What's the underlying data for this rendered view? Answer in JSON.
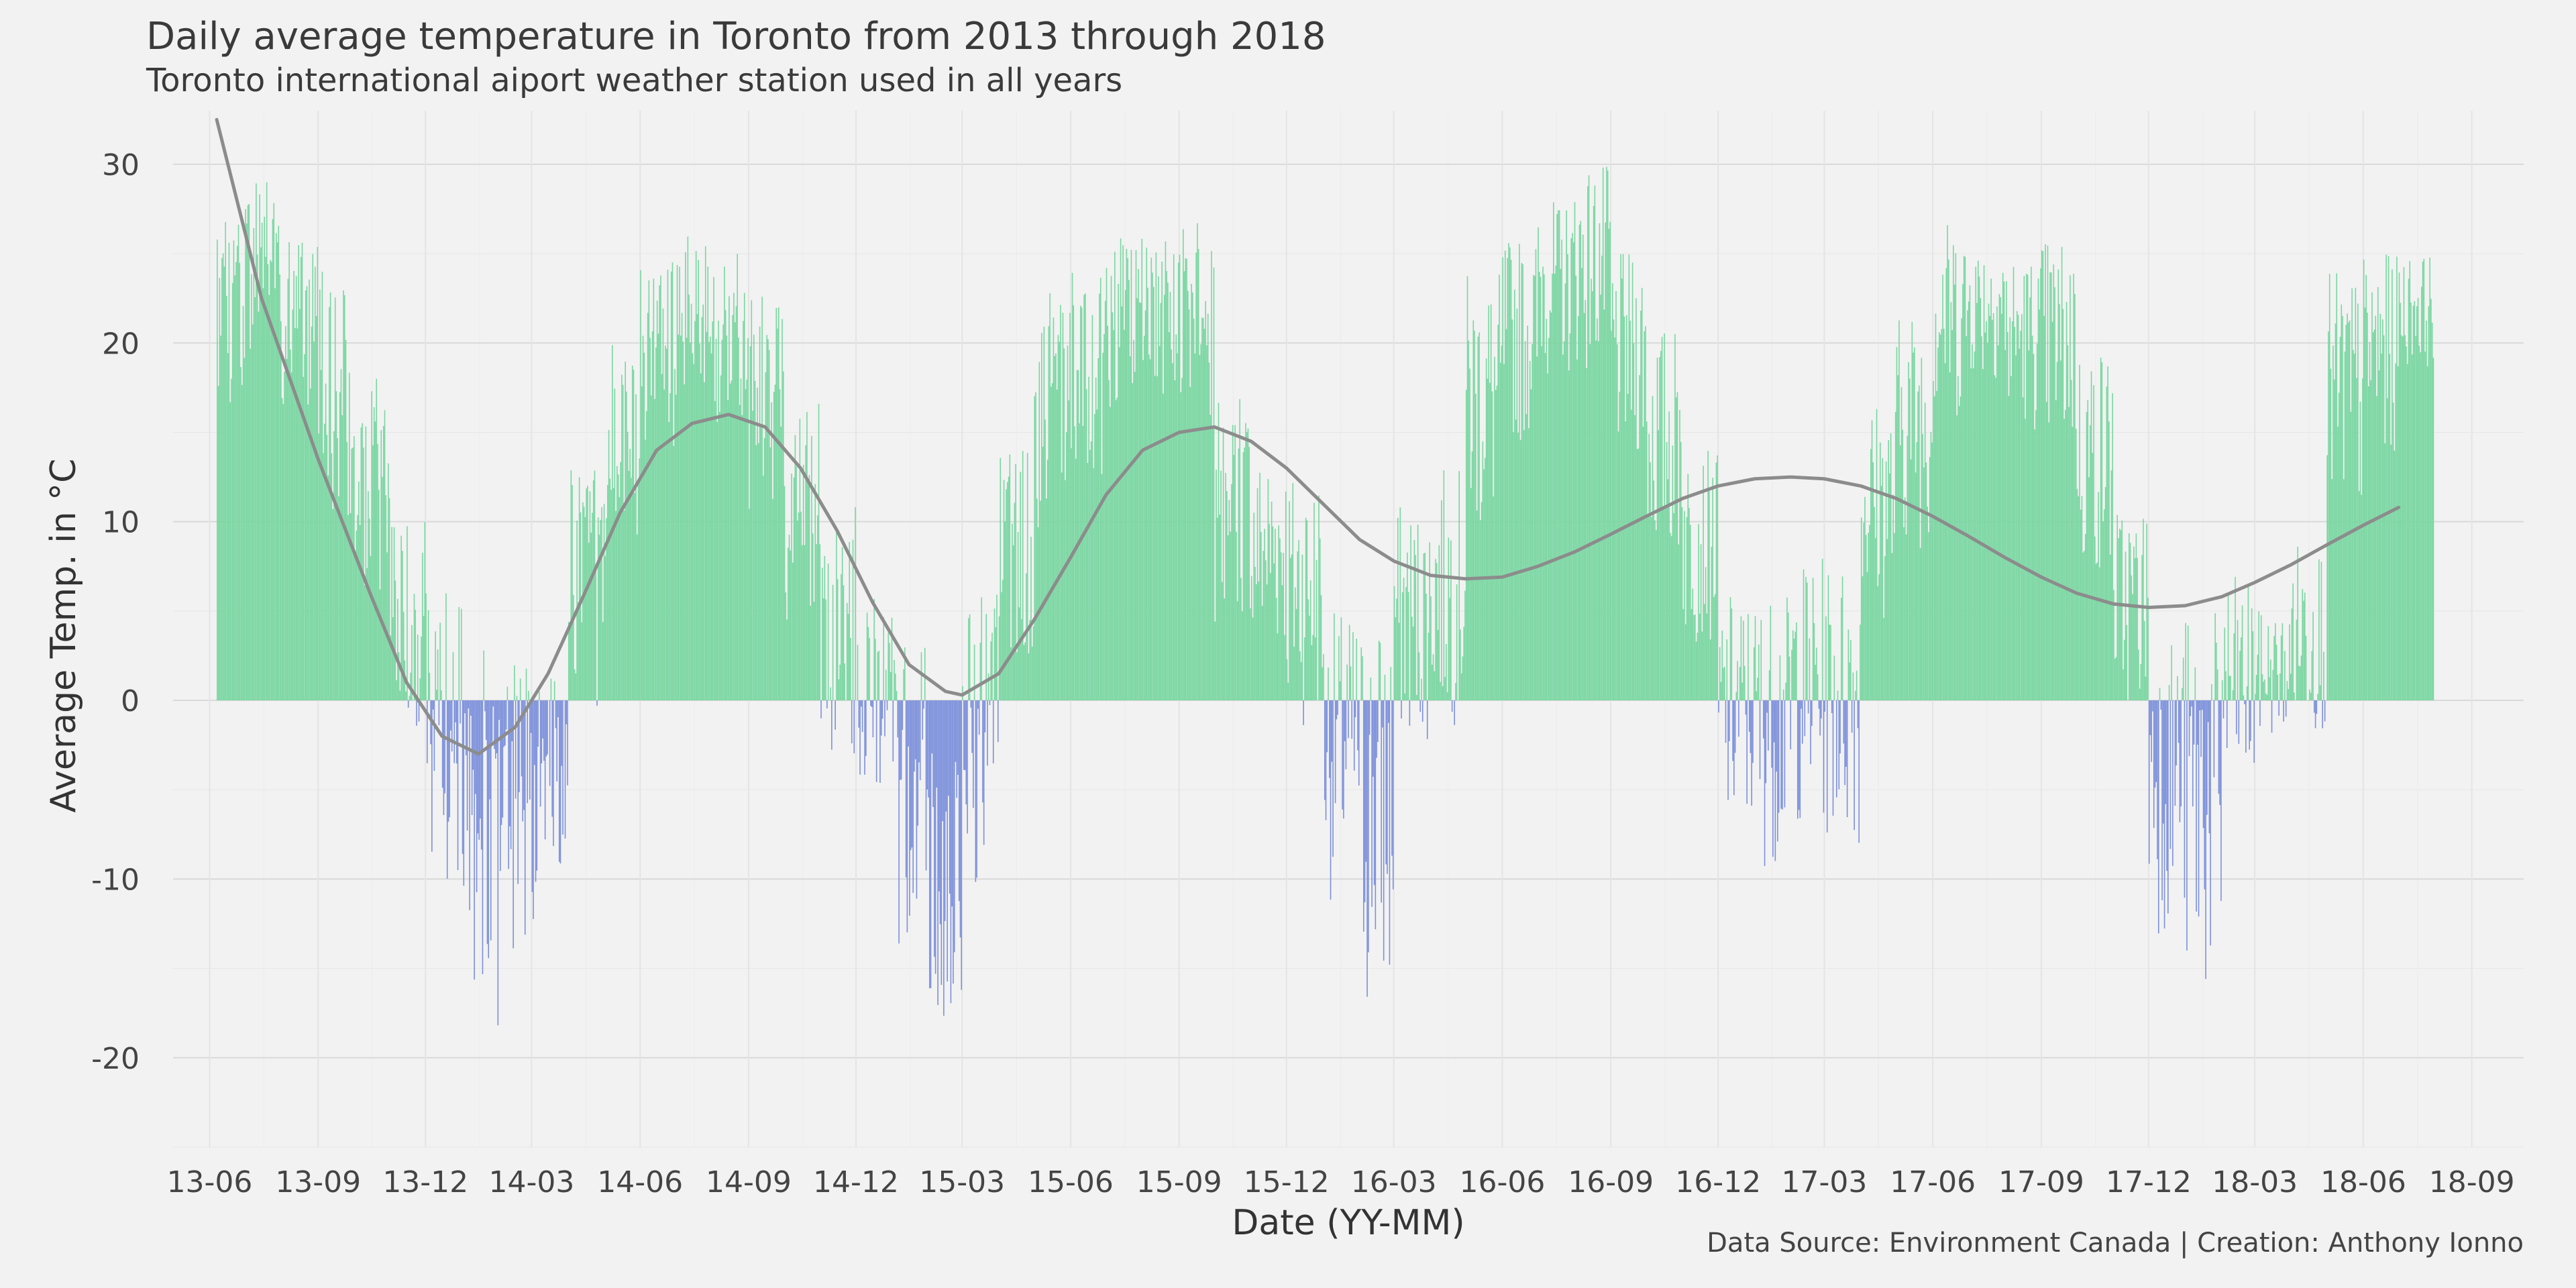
{
  "chart_data": {
    "type": "bar",
    "title": "Daily average temperature in Toronto from 2013 through 2018",
    "subtitle": "Toronto international aiport weather station used in all years",
    "xlabel": "Date (YY-MM)",
    "ylabel": "Average Temp. in °C",
    "caption": "Data Source: Environment Canada | Creation: Anthony Ionno",
    "ylim": [
      -25,
      33
    ],
    "yticks": [
      30,
      20,
      10,
      0,
      -10,
      -20
    ],
    "xticks": [
      "13-06",
      "13-09",
      "13-12",
      "14-03",
      "14-06",
      "14-09",
      "14-12",
      "15-03",
      "15-06",
      "15-09",
      "15-12",
      "16-03",
      "16-06",
      "16-09",
      "16-12",
      "17-03",
      "17-06",
      "17-09",
      "17-12",
      "18-03",
      "18-06",
      "18-09"
    ],
    "x_range": [
      "2013-06-01",
      "2018-09-01"
    ],
    "grid": true,
    "colors": {
      "positive": "#78d6a0",
      "negative": "#7b8fdb",
      "trend": "#8c8c8c",
      "background": "#f2f2f2",
      "gridline": "#d9d9d9"
    },
    "bar_series": {
      "name": "Daily average temperature",
      "date_resolution": "day",
      "monthly_envelope": [
        {
          "month": "2013-06",
          "low": 15,
          "high": 27
        },
        {
          "month": "2013-07",
          "low": 18,
          "high": 29
        },
        {
          "month": "2013-08",
          "low": 15,
          "high": 26
        },
        {
          "month": "2013-09",
          "low": 8,
          "high": 24
        },
        {
          "month": "2013-10",
          "low": 4,
          "high": 18
        },
        {
          "month": "2013-11",
          "low": -4,
          "high": 11
        },
        {
          "month": "2013-12",
          "low": -12,
          "high": 6
        },
        {
          "month": "2014-01",
          "low": -21,
          "high": 3
        },
        {
          "month": "2014-02",
          "low": -17,
          "high": 2
        },
        {
          "month": "2014-03",
          "low": -15,
          "high": 2
        },
        {
          "month": "2014-04",
          "low": -2,
          "high": 13
        },
        {
          "month": "2014-05",
          "low": 6,
          "high": 20
        },
        {
          "month": "2014-06",
          "low": 12,
          "high": 25
        },
        {
          "month": "2014-07",
          "low": 14,
          "high": 26
        },
        {
          "month": "2014-08",
          "low": 14,
          "high": 25
        },
        {
          "month": "2014-09",
          "low": 8,
          "high": 23
        },
        {
          "month": "2014-10",
          "low": 3,
          "high": 17
        },
        {
          "month": "2014-11",
          "low": -5,
          "high": 11
        },
        {
          "month": "2014-12",
          "low": -6,
          "high": 6
        },
        {
          "month": "2015-01",
          "low": -18,
          "high": 3
        },
        {
          "month": "2015-02",
          "low": -22,
          "high": -2
        },
        {
          "month": "2015-03",
          "low": -12,
          "high": 6
        },
        {
          "month": "2015-04",
          "low": 1,
          "high": 14
        },
        {
          "month": "2015-05",
          "low": 8,
          "high": 23
        },
        {
          "month": "2015-06",
          "low": 11,
          "high": 24
        },
        {
          "month": "2015-07",
          "low": 15,
          "high": 26
        },
        {
          "month": "2015-08",
          "low": 15,
          "high": 26
        },
        {
          "month": "2015-09",
          "low": 12,
          "high": 27
        },
        {
          "month": "2015-10",
          "low": 3,
          "high": 17
        },
        {
          "month": "2015-11",
          "low": 1,
          "high": 14
        },
        {
          "month": "2015-12",
          "low": -3,
          "high": 13
        },
        {
          "month": "2016-01",
          "low": -13,
          "high": 5
        },
        {
          "month": "2016-02",
          "low": -21,
          "high": 5
        },
        {
          "month": "2016-03",
          "low": -4,
          "high": 11
        },
        {
          "month": "2016-04",
          "low": -3,
          "high": 13
        },
        {
          "month": "2016-05",
          "low": 7,
          "high": 24
        },
        {
          "month": "2016-06",
          "low": 13,
          "high": 26
        },
        {
          "month": "2016-07",
          "low": 17,
          "high": 28
        },
        {
          "month": "2016-08",
          "low": 17,
          "high": 30
        },
        {
          "month": "2016-09",
          "low": 12,
          "high": 25
        },
        {
          "month": "2016-10",
          "low": 6,
          "high": 21
        },
        {
          "month": "2016-11",
          "low": 2,
          "high": 14
        },
        {
          "month": "2016-12",
          "low": -10,
          "high": 6
        },
        {
          "month": "2017-01",
          "low": -11,
          "high": 6
        },
        {
          "month": "2017-02",
          "low": -9,
          "high": 8
        },
        {
          "month": "2017-03",
          "low": -10,
          "high": 8
        },
        {
          "month": "2017-04",
          "low": 3,
          "high": 17
        },
        {
          "month": "2017-05",
          "low": 7,
          "high": 22
        },
        {
          "month": "2017-06",
          "low": 14,
          "high": 27
        },
        {
          "month": "2017-07",
          "low": 17,
          "high": 26
        },
        {
          "month": "2017-08",
          "low": 14,
          "high": 25
        },
        {
          "month": "2017-09",
          "low": 12,
          "high": 26
        },
        {
          "month": "2017-10",
          "low": 5,
          "high": 20
        },
        {
          "month": "2017-11",
          "low": -2,
          "high": 11
        },
        {
          "month": "2017-12",
          "low": -15,
          "high": 4
        },
        {
          "month": "2018-01",
          "low": -20,
          "high": 5
        },
        {
          "month": "2018-02",
          "low": -8,
          "high": 7
        },
        {
          "month": "2018-03",
          "low": -3,
          "high": 5
        },
        {
          "month": "2018-04",
          "low": -3,
          "high": 9
        },
        {
          "month": "2018-05",
          "low": 8,
          "high": 24
        },
        {
          "month": "2018-06",
          "low": 12,
          "high": 25
        },
        {
          "month": "2018-07",
          "low": 18,
          "high": 25
        }
      ]
    },
    "trend_line": {
      "name": "Smoothed trend",
      "points": [
        {
          "date": "2013-06-07",
          "value": 32.5
        },
        {
          "date": "2013-07-15",
          "value": 22.5
        },
        {
          "date": "2013-09-01",
          "value": 13.5
        },
        {
          "date": "2013-10-15",
          "value": 6
        },
        {
          "date": "2013-11-15",
          "value": 1
        },
        {
          "date": "2013-12-15",
          "value": -2
        },
        {
          "date": "2014-01-15",
          "value": -3
        },
        {
          "date": "2014-02-15",
          "value": -1.5
        },
        {
          "date": "2014-03-15",
          "value": 1.5
        },
        {
          "date": "2014-04-15",
          "value": 6
        },
        {
          "date": "2014-05-15",
          "value": 10.5
        },
        {
          "date": "2014-06-15",
          "value": 14
        },
        {
          "date": "2014-07-15",
          "value": 15.5
        },
        {
          "date": "2014-08-15",
          "value": 16
        },
        {
          "date": "2014-09-15",
          "value": 15.3
        },
        {
          "date": "2014-10-15",
          "value": 13
        },
        {
          "date": "2014-11-15",
          "value": 9.5
        },
        {
          "date": "2014-12-15",
          "value": 5.5
        },
        {
          "date": "2015-01-15",
          "value": 2
        },
        {
          "date": "2015-02-15",
          "value": 0.5
        },
        {
          "date": "2015-03-01",
          "value": 0.3
        },
        {
          "date": "2015-04-01",
          "value": 1.5
        },
        {
          "date": "2015-05-01",
          "value": 4.5
        },
        {
          "date": "2015-06-01",
          "value": 8
        },
        {
          "date": "2015-07-01",
          "value": 11.5
        },
        {
          "date": "2015-08-01",
          "value": 14
        },
        {
          "date": "2015-09-01",
          "value": 15
        },
        {
          "date": "2015-10-01",
          "value": 15.3
        },
        {
          "date": "2015-11-01",
          "value": 14.5
        },
        {
          "date": "2015-12-01",
          "value": 13
        },
        {
          "date": "2016-01-01",
          "value": 11
        },
        {
          "date": "2016-02-01",
          "value": 9
        },
        {
          "date": "2016-03-01",
          "value": 7.8
        },
        {
          "date": "2016-04-01",
          "value": 7
        },
        {
          "date": "2016-05-01",
          "value": 6.8
        },
        {
          "date": "2016-06-01",
          "value": 6.9
        },
        {
          "date": "2016-07-01",
          "value": 7.5
        },
        {
          "date": "2016-08-01",
          "value": 8.3
        },
        {
          "date": "2016-09-01",
          "value": 9.3
        },
        {
          "date": "2016-10-01",
          "value": 10.3
        },
        {
          "date": "2016-11-01",
          "value": 11.3
        },
        {
          "date": "2016-12-01",
          "value": 12
        },
        {
          "date": "2017-01-01",
          "value": 12.4
        },
        {
          "date": "2017-02-01",
          "value": 12.5
        },
        {
          "date": "2017-03-01",
          "value": 12.4
        },
        {
          "date": "2017-04-01",
          "value": 12
        },
        {
          "date": "2017-05-01",
          "value": 11.3
        },
        {
          "date": "2017-06-01",
          "value": 10.3
        },
        {
          "date": "2017-07-01",
          "value": 9.2
        },
        {
          "date": "2017-08-01",
          "value": 8
        },
        {
          "date": "2017-09-01",
          "value": 6.9
        },
        {
          "date": "2017-10-01",
          "value": 6
        },
        {
          "date": "2017-11-01",
          "value": 5.4
        },
        {
          "date": "2017-12-01",
          "value": 5.2
        },
        {
          "date": "2018-01-01",
          "value": 5.3
        },
        {
          "date": "2018-02-01",
          "value": 5.8
        },
        {
          "date": "2018-03-01",
          "value": 6.6
        },
        {
          "date": "2018-04-01",
          "value": 7.6
        },
        {
          "date": "2018-05-01",
          "value": 8.7
        },
        {
          "date": "2018-06-01",
          "value": 9.8
        },
        {
          "date": "2018-07-01",
          "value": 10.8
        }
      ]
    }
  }
}
